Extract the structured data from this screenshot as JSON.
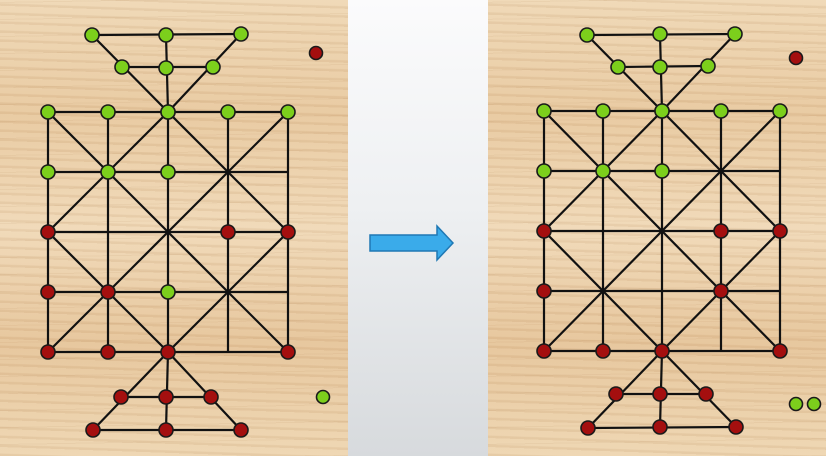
{
  "colors": {
    "green": "#7ccf1c",
    "red": "#a40f0f",
    "board_line": "#111111",
    "arrow_fill": "#3aabea",
    "arrow_stroke": "#1f78b4"
  },
  "transition_icon": "right-arrow-icon",
  "before": {
    "pieces": {
      "top_triangle_outer_row": [
        "green",
        "green",
        "green"
      ],
      "top_triangle_inner_row": [
        "green",
        "green",
        "green"
      ],
      "top_triangle_apex": "green",
      "grid": [
        [
          "green",
          "green",
          "green",
          "green",
          "green"
        ],
        [
          "green",
          "green",
          "green",
          null,
          null
        ],
        [
          "red",
          null,
          null,
          "red",
          "red"
        ],
        [
          "red",
          "red",
          "green",
          null,
          null
        ],
        [
          "red",
          "red",
          "red",
          null,
          "red"
        ]
      ],
      "bottom_triangle_inner_row": [
        "red",
        "red",
        "red"
      ],
      "bottom_triangle_outer_row": [
        "red",
        "red",
        "red"
      ]
    },
    "captured": {
      "red": 1,
      "green": 1
    }
  },
  "after": {
    "pieces": {
      "top_triangle_outer_row": [
        "green",
        "green",
        "green"
      ],
      "top_triangle_inner_row": [
        "green",
        "green",
        "green"
      ],
      "top_triangle_apex": "green",
      "grid": [
        [
          "green",
          "green",
          "green",
          "green",
          "green"
        ],
        [
          "green",
          "green",
          "green",
          null,
          null
        ],
        [
          "red",
          null,
          null,
          "red",
          "red"
        ],
        [
          "red",
          null,
          null,
          "red",
          null
        ],
        [
          "red",
          "red",
          "red",
          null,
          "red"
        ]
      ],
      "bottom_triangle_inner_row": [
        "red",
        "red",
        "red"
      ],
      "bottom_triangle_outer_row": [
        "red",
        "red",
        "red"
      ]
    },
    "captured": {
      "red": 1,
      "green": 2
    }
  }
}
